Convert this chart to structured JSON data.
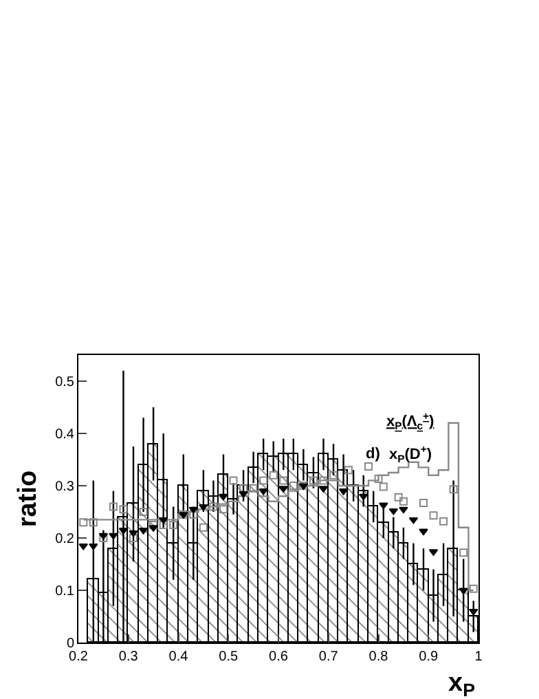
{
  "chart_data": {
    "type": "histogram",
    "ylabel": "ratio",
    "xlabel": "x$_{P}$",
    "annotations": [
      "d)",
      "x$_{P}$(Λ$_{c}$$^{+}$)",
      "x$_{P}$(D$^{+}$)"
    ],
    "xlim": [
      0.2,
      1.0
    ],
    "xticks": [
      0.2,
      0.3,
      0.4,
      0.5,
      0.6,
      0.7,
      0.8,
      0.9,
      {
        "value": 1.0,
        "label": "1"
      }
    ],
    "ylim": [
      0,
      0.55
    ],
    "yticks": [
      0,
      0.1,
      0.2,
      0.3,
      0.4,
      0.5
    ],
    "series": [
      {
        "type": "histogram",
        "color": "#000000",
        "bins": [
          0.22,
          0.24,
          0.26,
          0.28,
          0.3,
          0.32,
          0.34,
          0.36,
          0.38,
          0.4,
          0.42,
          0.44,
          0.46,
          0.48,
          0.5,
          0.52,
          0.54,
          0.56,
          0.58,
          0.6,
          0.62,
          0.64,
          0.66,
          0.68,
          0.7,
          0.72,
          0.74,
          0.76,
          0.78,
          0.8,
          0.82,
          0.84,
          0.86,
          0.88,
          0.9,
          0.92,
          0.94,
          0.96,
          0.98,
          1.0
        ],
        "values": [
          0.12,
          0.095,
          0.18,
          0.24,
          0.265,
          0.34,
          0.38,
          0.31,
          0.19,
          0.3,
          0.19,
          0.29,
          0.28,
          0.32,
          0.275,
          0.3,
          0.335,
          0.36,
          0.355,
          0.36,
          0.36,
          0.34,
          0.325,
          0.36,
          0.35,
          0.33,
          0.3,
          0.29,
          0.26,
          0.23,
          0.21,
          0.19,
          0.15,
          0.14,
          0.09,
          0.13,
          0.18,
          0.1,
          0.05
        ],
        "errors": [
          0.19,
          0.12,
          0.11,
          0.28,
          0.11,
          0.09,
          0.07,
          0.09,
          0.07,
          0.06,
          0.07,
          0.04,
          0.03,
          0.04,
          0.03,
          0.03,
          0.03,
          0.03,
          0.03,
          0.03,
          0.03,
          0.03,
          0.03,
          0.03,
          0.03,
          0.03,
          0.03,
          0.03,
          0.03,
          0.03,
          0.03,
          0.03,
          0.04,
          0.04,
          0.05,
          0.06,
          0.13,
          0.06,
          0.03
        ]
      },
      {
        "type": "step",
        "color": "#888888",
        "x": [
          0.21,
          0.23,
          0.25,
          0.27,
          0.29,
          0.31,
          0.33,
          0.35,
          0.37,
          0.39,
          0.41,
          0.43,
          0.45,
          0.47,
          0.49,
          0.51,
          0.53,
          0.55,
          0.57,
          0.59,
          0.61,
          0.63,
          0.65,
          0.67,
          0.69,
          0.71,
          0.73,
          0.75,
          0.77,
          0.79,
          0.81,
          0.83,
          0.85,
          0.87,
          0.89,
          0.91,
          0.93,
          0.95,
          0.97,
          0.99
        ],
        "values": [
          0.235,
          0.235,
          0.235,
          0.235,
          0.235,
          0.235,
          0.235,
          0.235,
          0.235,
          0.235,
          0.245,
          0.25,
          0.255,
          0.26,
          0.265,
          0.27,
          0.28,
          0.29,
          0.28,
          0.27,
          0.28,
          0.29,
          0.3,
          0.3,
          0.31,
          0.31,
          0.3,
          0.3,
          0.3,
          0.31,
          0.32,
          0.325,
          0.335,
          0.345,
          0.335,
          0.32,
          0.33,
          0.42,
          0.22,
          0.1
        ]
      },
      {
        "type": "scatter",
        "color": "#888888",
        "marker": "square",
        "x": [
          0.21,
          0.23,
          0.25,
          0.27,
          0.29,
          0.31,
          0.33,
          0.35,
          0.37,
          0.39,
          0.41,
          0.43,
          0.45,
          0.47,
          0.49,
          0.51,
          0.53,
          0.55,
          0.57,
          0.59,
          0.61,
          0.63,
          0.65,
          0.67,
          0.69,
          0.71,
          0.74,
          0.78,
          0.8,
          0.81,
          0.84,
          0.85,
          0.89,
          0.91,
          0.93,
          0.95,
          0.97,
          0.99
        ],
        "values": [
          0.23,
          0.23,
          0.2,
          0.26,
          0.255,
          0.2,
          0.25,
          0.225,
          0.225,
          0.225,
          0.245,
          0.245,
          0.22,
          0.26,
          0.255,
          0.31,
          0.295,
          0.295,
          0.31,
          0.32,
          0.31,
          0.3,
          0.3,
          0.31,
          0.31,
          0.32,
          0.33,
          0.337,
          0.313,
          0.298,
          0.278,
          0.27,
          0.267,
          0.243,
          0.232,
          0.293,
          0.172,
          0.103
        ]
      },
      {
        "type": "scatter",
        "color": "#000000",
        "marker": "triangle",
        "x": [
          0.21,
          0.23,
          0.25,
          0.27,
          0.29,
          0.31,
          0.33,
          0.35,
          0.37,
          0.41,
          0.43,
          0.45,
          0.49,
          0.53,
          0.57,
          0.61,
          0.65,
          0.69,
          0.73,
          0.77,
          0.81,
          0.83,
          0.85,
          0.87,
          0.89,
          0.91,
          0.97,
          0.99
        ],
        "values": [
          0.185,
          0.185,
          0.205,
          0.205,
          0.215,
          0.21,
          0.215,
          0.22,
          0.235,
          0.245,
          0.255,
          0.26,
          0.28,
          0.285,
          0.29,
          0.295,
          0.3,
          0.295,
          0.29,
          0.28,
          0.263,
          0.252,
          0.255,
          0.235,
          0.213,
          0.174,
          0.1,
          0.06
        ]
      }
    ]
  }
}
